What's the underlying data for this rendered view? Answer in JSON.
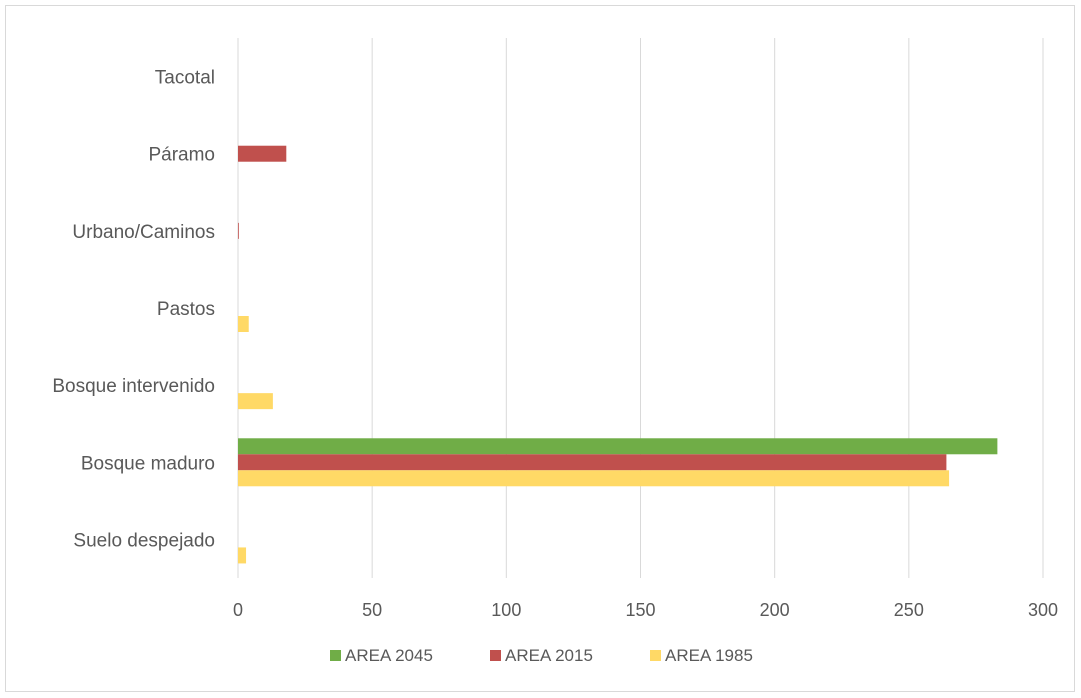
{
  "chart_data": {
    "type": "bar",
    "orientation": "horizontal",
    "categories": [
      "Suelo despejado",
      "Bosque maduro",
      "Bosque intervenido",
      "Pastos",
      "Urbano/Caminos",
      "Páramo",
      "Tacotal"
    ],
    "series": [
      {
        "name": "AREA 2045",
        "color": "#70ad47",
        "values": [
          0,
          283,
          0,
          0,
          0,
          0,
          0
        ]
      },
      {
        "name": "AREA 2015",
        "color": "#c0504d",
        "values": [
          0,
          264,
          0,
          0,
          0.3,
          18,
          0
        ]
      },
      {
        "name": "AREA 1985",
        "color": "#ffd966",
        "values": [
          3,
          265,
          13,
          4,
          0,
          0,
          0
        ]
      }
    ],
    "xlim": [
      0,
      300
    ],
    "xticks": [
      "0",
      "50",
      "100",
      "150",
      "200",
      "250",
      "300"
    ],
    "grid": true,
    "legend": "bottom",
    "title": "",
    "xlabel": "",
    "ylabel": ""
  }
}
